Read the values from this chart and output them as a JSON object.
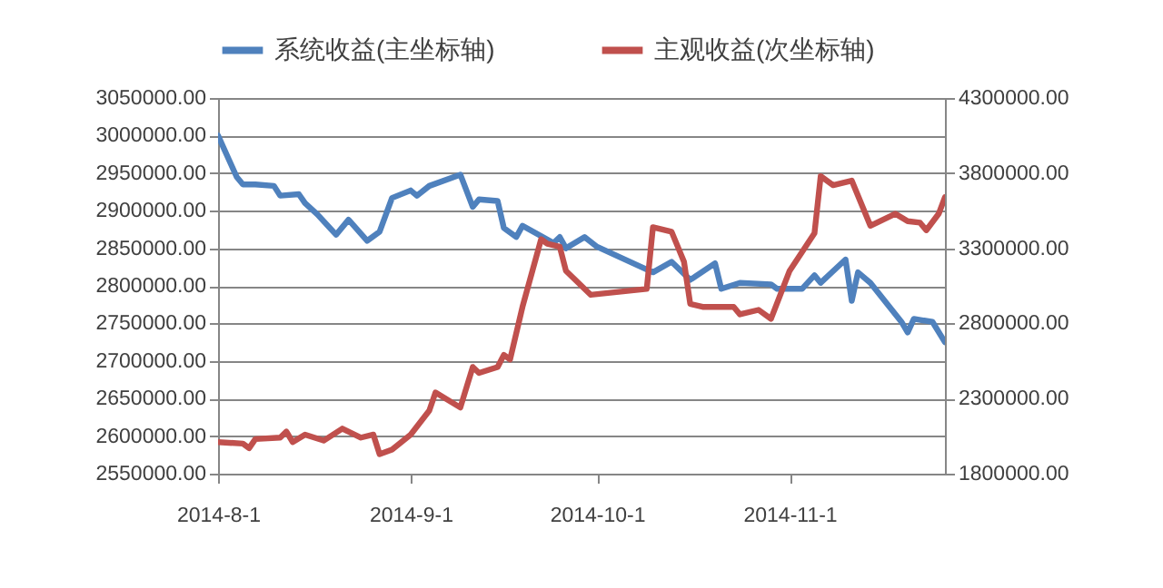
{
  "chart_data": {
    "type": "line",
    "legend": "top",
    "grid": "y",
    "line_style": "solid",
    "marker": "none",
    "xlim": [
      "2014-08-01",
      "2014-11-26"
    ],
    "xticks": [
      {
        "value": "2014-08-01",
        "label": "2014-8-1"
      },
      {
        "value": "2014-09-01",
        "label": "2014-9-1"
      },
      {
        "value": "2014-10-01",
        "label": "2014-10-1"
      },
      {
        "value": "2014-11-01",
        "label": "2014-11-1"
      }
    ],
    "ylim": [
      2550000,
      3050000
    ],
    "yticks": [
      {
        "value": 2550000,
        "label": "2550000.00"
      },
      {
        "value": 2600000,
        "label": "2600000.00"
      },
      {
        "value": 2650000,
        "label": "2650000.00"
      },
      {
        "value": 2700000,
        "label": "2700000.00"
      },
      {
        "value": 2750000,
        "label": "2750000.00"
      },
      {
        "value": 2800000,
        "label": "2800000.00"
      },
      {
        "value": 2850000,
        "label": "2850000.00"
      },
      {
        "value": 2900000,
        "label": "2900000.00"
      },
      {
        "value": 2950000,
        "label": "2950000.00"
      },
      {
        "value": 3000000,
        "label": "3000000.00"
      },
      {
        "value": 3050000,
        "label": "3050000.00"
      }
    ],
    "y2lim": [
      1800000,
      4300000
    ],
    "y2ticks": [
      {
        "value": 1800000,
        "label": "1800000.00"
      },
      {
        "value": 2300000,
        "label": "2300000.00"
      },
      {
        "value": 2800000,
        "label": "2800000.00"
      },
      {
        "value": 3300000,
        "label": "3300000.00"
      },
      {
        "value": 3800000,
        "label": "3800000.00"
      },
      {
        "value": 4300000,
        "label": "4300000.00"
      }
    ],
    "series": [
      {
        "name": "系统收益(主坐标轴)",
        "color": "#4f81bd",
        "x": [
          "2014-08-01",
          "2014-08-04",
          "2014-08-05",
          "2014-08-07",
          "2014-08-10",
          "2014-08-11",
          "2014-08-14",
          "2014-08-15",
          "2014-08-17",
          "2014-08-20",
          "2014-08-22",
          "2014-08-25",
          "2014-08-27",
          "2014-08-29",
          "2014-09-01",
          "2014-09-02",
          "2014-09-04",
          "2014-09-09",
          "2014-09-11",
          "2014-09-12",
          "2014-09-15",
          "2014-09-16",
          "2014-09-18",
          "2014-09-19",
          "2014-09-24",
          "2014-09-25",
          "2014-09-26",
          "2014-09-29",
          "2014-10-01",
          "2014-10-10",
          "2014-10-13",
          "2014-10-16",
          "2014-10-20",
          "2014-10-21",
          "2014-10-24",
          "2014-10-29",
          "2014-10-30",
          "2014-11-03",
          "2014-11-05",
          "2014-11-06",
          "2014-11-10",
          "2014-11-11",
          "2014-11-12",
          "2014-11-14",
          "2014-11-19",
          "2014-11-20",
          "2014-11-21",
          "2014-11-24",
          "2014-11-26"
        ],
        "values": [
          3000000,
          2945000,
          2935000,
          2935000,
          2933000,
          2920000,
          2922000,
          2910000,
          2895000,
          2868000,
          2888000,
          2860000,
          2872000,
          2917000,
          2927000,
          2920000,
          2933000,
          2948000,
          2905000,
          2915000,
          2913000,
          2877000,
          2865000,
          2880000,
          2857000,
          2865000,
          2850000,
          2865000,
          2852000,
          2818000,
          2832000,
          2808000,
          2830000,
          2796000,
          2804000,
          2802000,
          2796000,
          2796000,
          2814000,
          2804000,
          2835000,
          2780000,
          2818000,
          2804000,
          2752000,
          2738000,
          2756000,
          2752000,
          2725000
        ]
      },
      {
        "name": "主观收益(次坐标轴)",
        "color": "#c0504d",
        "axis": "y2",
        "x": [
          "2014-08-01",
          "2014-08-05",
          "2014-08-06",
          "2014-08-07",
          "2014-08-11",
          "2014-08-12",
          "2014-08-13",
          "2014-08-15",
          "2014-08-18",
          "2014-08-21",
          "2014-08-24",
          "2014-08-26",
          "2014-08-27",
          "2014-08-29",
          "2014-09-01",
          "2014-09-04",
          "2014-09-05",
          "2014-09-09",
          "2014-09-11",
          "2014-09-12",
          "2014-09-15",
          "2014-09-16",
          "2014-09-17",
          "2014-09-19",
          "2014-09-22",
          "2014-09-23",
          "2014-09-25",
          "2014-09-26",
          "2014-09-30",
          "2014-10-09",
          "2014-10-10",
          "2014-10-13",
          "2014-10-15",
          "2014-10-16",
          "2014-10-18",
          "2014-10-23",
          "2014-10-24",
          "2014-10-27",
          "2014-10-29",
          "2014-11-01",
          "2014-11-05",
          "2014-11-06",
          "2014-11-08",
          "2014-11-11",
          "2014-11-14",
          "2014-11-18",
          "2014-11-20",
          "2014-11-22",
          "2014-11-23",
          "2014-11-25",
          "2014-11-26"
        ],
        "values": [
          2010000,
          2000000,
          1970000,
          2030000,
          2040000,
          2080000,
          2010000,
          2060000,
          2020000,
          2100000,
          2040000,
          2060000,
          1930000,
          1960000,
          2060000,
          2220000,
          2340000,
          2240000,
          2510000,
          2470000,
          2510000,
          2590000,
          2560000,
          2910000,
          3360000,
          3330000,
          3310000,
          3150000,
          2990000,
          3030000,
          3440000,
          3410000,
          3210000,
          2930000,
          2910000,
          2910000,
          2860000,
          2890000,
          2830000,
          3150000,
          3400000,
          3780000,
          3720000,
          3750000,
          3450000,
          3530000,
          3480000,
          3470000,
          3420000,
          3530000,
          3640000
        ]
      }
    ]
  }
}
